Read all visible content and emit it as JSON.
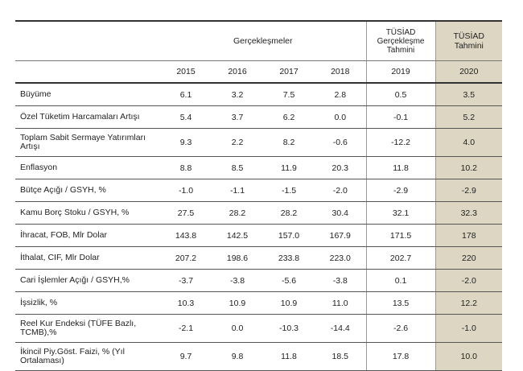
{
  "header": {
    "actuals": "Gerçekleşmeler",
    "projection": "TÜSİAD Gerçekleşme Tahmini",
    "forecast": "TÜSİAD Tahmini"
  },
  "years": [
    "2015",
    "2016",
    "2017",
    "2018",
    "2019",
    "2020"
  ],
  "rows": [
    {
      "label": "Büyüme",
      "values": [
        "6.1",
        "3.2",
        "7.5",
        "2.8",
        "0.5",
        "3.5"
      ]
    },
    {
      "label": "Özel Tüketim Harcamaları Artışı",
      "values": [
        "5.4",
        "3.7",
        "6.2",
        "0.0",
        "-0.1",
        "5.2"
      ]
    },
    {
      "label": "Toplam Sabit Sermaye Yatırımları Artışı",
      "values": [
        "9.3",
        "2.2",
        "8.2",
        "-0.6",
        "-12.2",
        "4.0"
      ]
    },
    {
      "label": "Enflasyon",
      "values": [
        "8.8",
        "8.5",
        "11.9",
        "20.3",
        "11.8",
        "10.2"
      ]
    },
    {
      "label": "Bütçe Açığı / GSYH, %",
      "values": [
        "-1.0",
        "-1.1",
        "-1.5",
        "-2.0",
        "-2.9",
        "-2.9"
      ]
    },
    {
      "label": "Kamu Borç Stoku / GSYH, %",
      "values": [
        "27.5",
        "28.2",
        "28.2",
        "30.4",
        "32.1",
        "32.3"
      ]
    },
    {
      "label": "İhracat, FOB, Mlr Dolar",
      "values": [
        "143.8",
        "142.5",
        "157.0",
        "167.9",
        "171.5",
        "178"
      ]
    },
    {
      "label": "İthalat, CIF, Mlr Dolar",
      "values": [
        "207.2",
        "198.6",
        "233.8",
        "223.0",
        "202.7",
        "220"
      ]
    },
    {
      "label": "Cari İşlemler Açığı / GSYH,%",
      "values": [
        "-3.7",
        "-3.8",
        "-5.6",
        "-3.8",
        "0.1",
        "-2.0"
      ]
    },
    {
      "label": "İşsizlik, %",
      "values": [
        "10.3",
        "10.9",
        "10.9",
        "11.0",
        "13.5",
        "12.2"
      ]
    },
    {
      "label": "Reel Kur Endeksi (TÜFE Bazlı, TCMB),%",
      "values": [
        "-2.1",
        "0.0",
        "-10.3",
        "-14.4",
        "-2.6",
        "-1.0"
      ]
    },
    {
      "label": "İkincil Piy.Göst. Faizi, % (Yıl Ortalaması)",
      "values": [
        "9.7",
        "9.8",
        "11.8",
        "18.5",
        "17.8",
        "10.0"
      ]
    }
  ]
}
